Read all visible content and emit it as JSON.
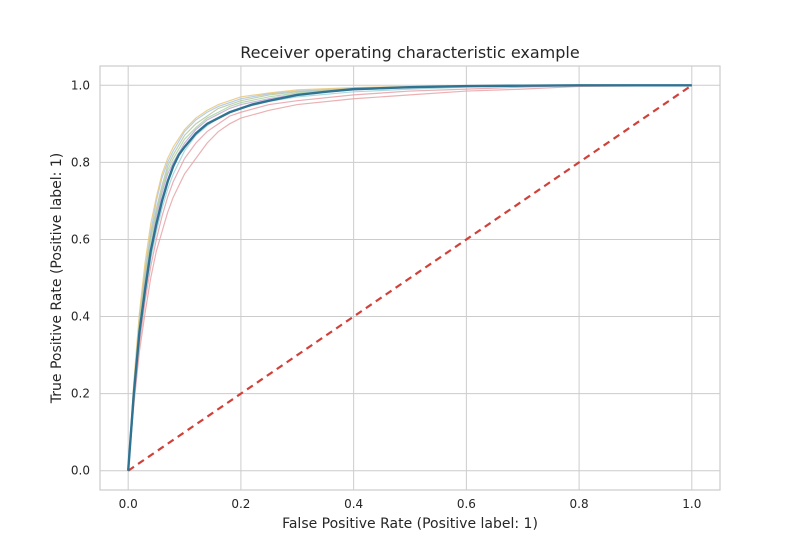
{
  "chart_data": {
    "type": "line",
    "title": "Receiver operating characteristic example",
    "xlabel": "False Positive Rate (Positive label: 1)",
    "ylabel": "True Positive Rate (Positive label: 1)",
    "xlim": [
      -0.05,
      1.05
    ],
    "ylim": [
      -0.05,
      1.05
    ],
    "xticks": [
      "0.0",
      "0.2",
      "0.4",
      "0.6",
      "0.8",
      "1.0"
    ],
    "yticks": [
      "0.0",
      "0.2",
      "0.4",
      "0.6",
      "0.8",
      "1.0"
    ],
    "grid": true,
    "colors": {
      "mean": "#2f7393",
      "chance": "#d0413a",
      "folds": [
        "#a9c6e8",
        "#a8d3a3",
        "#e7a3a6",
        "#c2a7d4",
        "#e9c77a",
        "#9fd3d6",
        "#e6a0a8",
        "#b7c7a0"
      ]
    },
    "series": [
      {
        "role": "mean",
        "x": [
          0.0,
          0.01,
          0.02,
          0.03,
          0.04,
          0.05,
          0.06,
          0.07,
          0.08,
          0.09,
          0.1,
          0.12,
          0.14,
          0.16,
          0.18,
          0.2,
          0.22,
          0.25,
          0.3,
          0.35,
          0.4,
          0.5,
          0.6,
          0.7,
          0.8,
          0.9,
          1.0
        ],
        "y": [
          0.0,
          0.2,
          0.36,
          0.47,
          0.57,
          0.64,
          0.7,
          0.75,
          0.79,
          0.82,
          0.84,
          0.875,
          0.9,
          0.915,
          0.93,
          0.94,
          0.95,
          0.96,
          0.975,
          0.983,
          0.99,
          0.995,
          0.998,
          0.999,
          1.0,
          1.0,
          1.0
        ]
      },
      {
        "role": "fold",
        "x": [
          0.0,
          0.01,
          0.02,
          0.03,
          0.04,
          0.05,
          0.06,
          0.07,
          0.08,
          0.1,
          0.12,
          0.14,
          0.16,
          0.18,
          0.2,
          0.25,
          0.3,
          0.4,
          0.5,
          0.6,
          0.7,
          0.8,
          1.0
        ],
        "y": [
          0.0,
          0.22,
          0.4,
          0.52,
          0.62,
          0.7,
          0.76,
          0.8,
          0.83,
          0.88,
          0.91,
          0.93,
          0.945,
          0.955,
          0.965,
          0.978,
          0.985,
          0.992,
          0.996,
          0.998,
          1.0,
          1.0,
          1.0
        ]
      },
      {
        "role": "fold",
        "x": [
          0.0,
          0.01,
          0.02,
          0.03,
          0.04,
          0.05,
          0.06,
          0.07,
          0.08,
          0.1,
          0.12,
          0.14,
          0.16,
          0.18,
          0.2,
          0.25,
          0.3,
          0.4,
          0.5,
          0.6,
          0.7,
          0.8,
          1.0
        ],
        "y": [
          0.0,
          0.21,
          0.38,
          0.5,
          0.6,
          0.67,
          0.73,
          0.78,
          0.81,
          0.86,
          0.89,
          0.915,
          0.93,
          0.945,
          0.955,
          0.97,
          0.98,
          0.99,
          0.995,
          0.998,
          1.0,
          1.0,
          1.0
        ]
      },
      {
        "role": "fold",
        "x": [
          0.0,
          0.01,
          0.02,
          0.03,
          0.04,
          0.05,
          0.06,
          0.07,
          0.08,
          0.1,
          0.12,
          0.14,
          0.16,
          0.18,
          0.2,
          0.25,
          0.3,
          0.4,
          0.5,
          0.6,
          0.7,
          0.8,
          1.0
        ],
        "y": [
          0.0,
          0.17,
          0.31,
          0.41,
          0.5,
          0.57,
          0.62,
          0.67,
          0.71,
          0.77,
          0.81,
          0.85,
          0.88,
          0.9,
          0.915,
          0.935,
          0.95,
          0.965,
          0.975,
          0.985,
          0.99,
          0.997,
          1.0
        ]
      },
      {
        "role": "fold",
        "x": [
          0.0,
          0.01,
          0.02,
          0.03,
          0.04,
          0.05,
          0.06,
          0.07,
          0.08,
          0.1,
          0.12,
          0.14,
          0.16,
          0.18,
          0.2,
          0.25,
          0.3,
          0.4,
          0.5,
          0.6,
          0.7,
          0.8,
          1.0
        ],
        "y": [
          0.0,
          0.2,
          0.37,
          0.49,
          0.58,
          0.66,
          0.72,
          0.77,
          0.8,
          0.85,
          0.885,
          0.91,
          0.925,
          0.94,
          0.95,
          0.965,
          0.977,
          0.988,
          0.994,
          0.997,
          1.0,
          1.0,
          1.0
        ]
      },
      {
        "role": "fold",
        "x": [
          0.0,
          0.01,
          0.02,
          0.03,
          0.04,
          0.05,
          0.06,
          0.07,
          0.08,
          0.1,
          0.12,
          0.14,
          0.16,
          0.18,
          0.2,
          0.25,
          0.3,
          0.4,
          0.5,
          0.6,
          0.7,
          0.8,
          1.0
        ],
        "y": [
          0.0,
          0.23,
          0.41,
          0.54,
          0.64,
          0.71,
          0.77,
          0.81,
          0.84,
          0.885,
          0.915,
          0.935,
          0.95,
          0.96,
          0.97,
          0.98,
          0.988,
          0.994,
          0.997,
          0.999,
          1.0,
          1.0,
          1.0
        ]
      },
      {
        "role": "fold",
        "x": [
          0.0,
          0.01,
          0.02,
          0.03,
          0.04,
          0.05,
          0.06,
          0.07,
          0.08,
          0.1,
          0.12,
          0.14,
          0.16,
          0.18,
          0.2,
          0.25,
          0.3,
          0.4,
          0.5,
          0.6,
          0.7,
          0.8,
          1.0
        ],
        "y": [
          0.0,
          0.19,
          0.35,
          0.46,
          0.55,
          0.62,
          0.68,
          0.73,
          0.77,
          0.83,
          0.87,
          0.895,
          0.915,
          0.93,
          0.94,
          0.958,
          0.97,
          0.983,
          0.99,
          0.995,
          0.998,
          1.0,
          1.0
        ]
      },
      {
        "role": "fold",
        "x": [
          0.0,
          0.01,
          0.02,
          0.03,
          0.04,
          0.05,
          0.06,
          0.07,
          0.08,
          0.1,
          0.12,
          0.14,
          0.16,
          0.18,
          0.2,
          0.25,
          0.3,
          0.4,
          0.5,
          0.6,
          0.7,
          0.8,
          1.0
        ],
        "y": [
          0.0,
          0.18,
          0.33,
          0.44,
          0.53,
          0.6,
          0.66,
          0.71,
          0.75,
          0.81,
          0.85,
          0.88,
          0.9,
          0.92,
          0.93,
          0.95,
          0.96,
          0.975,
          0.985,
          0.99,
          0.995,
          1.0,
          1.0
        ]
      },
      {
        "role": "fold",
        "x": [
          0.0,
          0.01,
          0.02,
          0.03,
          0.04,
          0.05,
          0.06,
          0.07,
          0.08,
          0.1,
          0.12,
          0.14,
          0.16,
          0.18,
          0.2,
          0.25,
          0.3,
          0.4,
          0.5,
          0.6,
          0.7,
          0.8,
          1.0
        ],
        "y": [
          0.0,
          0.21,
          0.39,
          0.51,
          0.61,
          0.68,
          0.74,
          0.79,
          0.82,
          0.87,
          0.9,
          0.92,
          0.94,
          0.95,
          0.96,
          0.975,
          0.983,
          0.991,
          0.996,
          0.998,
          1.0,
          1.0,
          1.0
        ]
      },
      {
        "role": "chance",
        "x": [
          0.0,
          1.0
        ],
        "y": [
          0.0,
          1.0
        ]
      }
    ]
  }
}
